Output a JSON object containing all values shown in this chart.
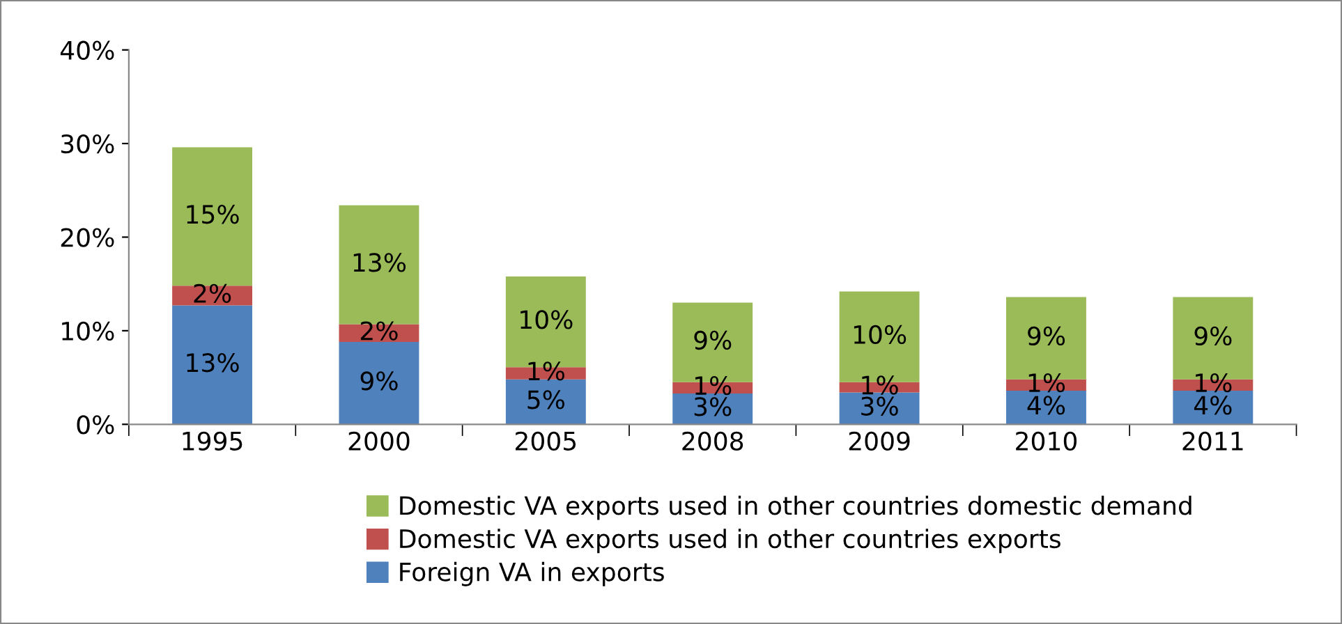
{
  "chart_data": {
    "type": "bar",
    "stacked": true,
    "categories": [
      "1995",
      "2000",
      "2005",
      "2008",
      "2009",
      "2010",
      "2011"
    ],
    "series": [
      {
        "name": "Foreign VA in exports",
        "color": "#4f81bd",
        "values": [
          12.7,
          8.8,
          4.8,
          3.3,
          3.4,
          3.6,
          3.6
        ],
        "value_labels": [
          "13%",
          "9%",
          "5%",
          "3%",
          "3%",
          "4%",
          "4%"
        ]
      },
      {
        "name": "Domestic VA exports used in other countries exports",
        "color": "#c0504d",
        "values": [
          2.1,
          1.9,
          1.3,
          1.2,
          1.1,
          1.2,
          1.2
        ],
        "value_labels": [
          "2%",
          "2%",
          "1%",
          "1%",
          "1%",
          "1%",
          "1%"
        ]
      },
      {
        "name": "Domestic VA exports used in other countries domestic demand",
        "color": "#9bbb59",
        "values": [
          14.8,
          12.7,
          9.7,
          8.5,
          9.7,
          8.8,
          8.8
        ],
        "value_labels": [
          "15%",
          "13%",
          "10%",
          "9%",
          "10%",
          "9%",
          "9%"
        ]
      }
    ],
    "ylim": [
      0,
      40
    ],
    "yticks": [
      {
        "value": 0,
        "label": "0%"
      },
      {
        "value": 10,
        "label": "10%"
      },
      {
        "value": 20,
        "label": "20%"
      },
      {
        "value": 30,
        "label": "30%"
      },
      {
        "value": 40,
        "label": "40%"
      }
    ],
    "grid": false,
    "legend": "bottom"
  }
}
